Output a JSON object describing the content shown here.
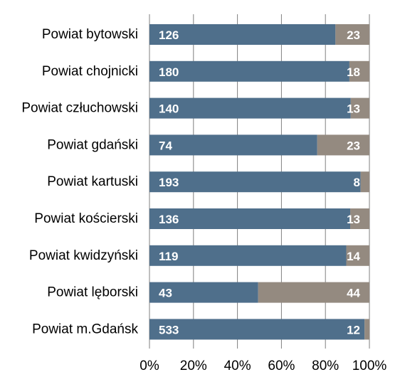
{
  "chart_data": {
    "type": "bar",
    "orientation": "horizontal",
    "stacked": "percent",
    "title": "",
    "xlabel": "",
    "ylabel": "",
    "xlim": [
      0,
      100
    ],
    "x_ticks": [
      "0%",
      "20%",
      "40%",
      "60%",
      "80%",
      "100%"
    ],
    "grid": "vertical",
    "legend": "none",
    "categories": [
      "Powiat bytowski",
      "Powiat chojnicki",
      "Powiat człuchowski",
      "Powiat gdański",
      "Powiat kartuski",
      "Powiat kościerski",
      "Powiat kwidzyński",
      "Powiat lęborski",
      "Powiat m.Gdańsk"
    ],
    "series": [
      {
        "values": [
          126,
          180,
          140,
          74,
          193,
          136,
          119,
          43,
          533
        ],
        "color": "#4f6f8b"
      },
      {
        "values": [
          23,
          18,
          13,
          23,
          8,
          13,
          14,
          44,
          12
        ],
        "color": "#948a80"
      }
    ]
  }
}
